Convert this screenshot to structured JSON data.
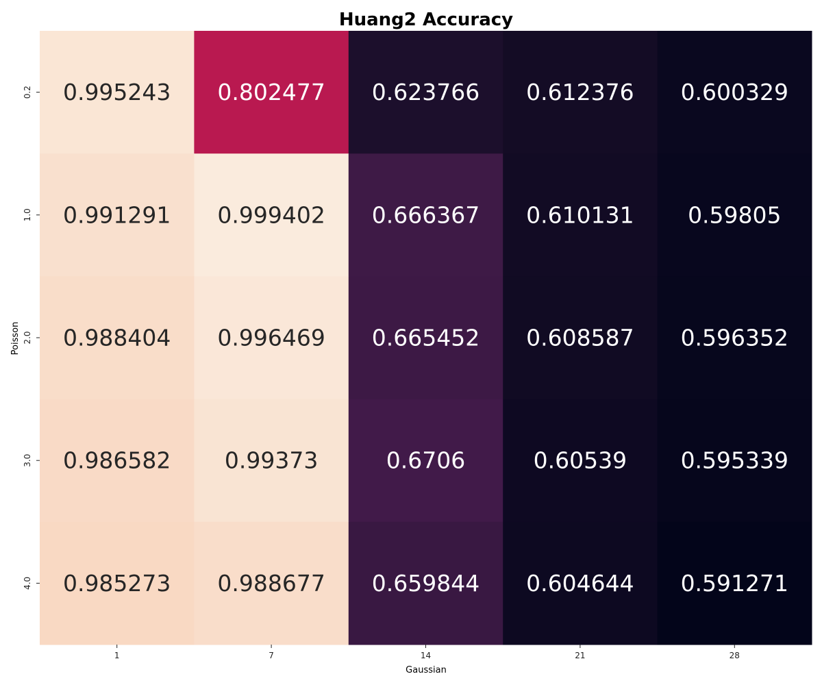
{
  "chart_data": {
    "type": "heatmap",
    "title": "Huang2 Accuracy",
    "xlabel": "Gaussian",
    "ylabel": "Poisson",
    "x_categories": [
      "1",
      "7",
      "14",
      "21",
      "28"
    ],
    "y_categories": [
      "0.2",
      "1.0",
      "2.0",
      "3.0",
      "4.0"
    ],
    "values": [
      [
        0.995243,
        0.802477,
        0.623766,
        0.612376,
        0.600329
      ],
      [
        0.991291,
        0.999402,
        0.666367,
        0.610131,
        0.59805
      ],
      [
        0.988404,
        0.996469,
        0.665452,
        0.608587,
        0.596352
      ],
      [
        0.986582,
        0.99373,
        0.6706,
        0.60539,
        0.595339
      ],
      [
        0.985273,
        0.988677,
        0.659844,
        0.604644,
        0.591271
      ]
    ],
    "colormap": "rocket",
    "color_range": [
      0.591271,
      0.999402
    ],
    "colorbar": false,
    "dark_text_color": "#262626",
    "light_text_color": "#ffffff"
  }
}
